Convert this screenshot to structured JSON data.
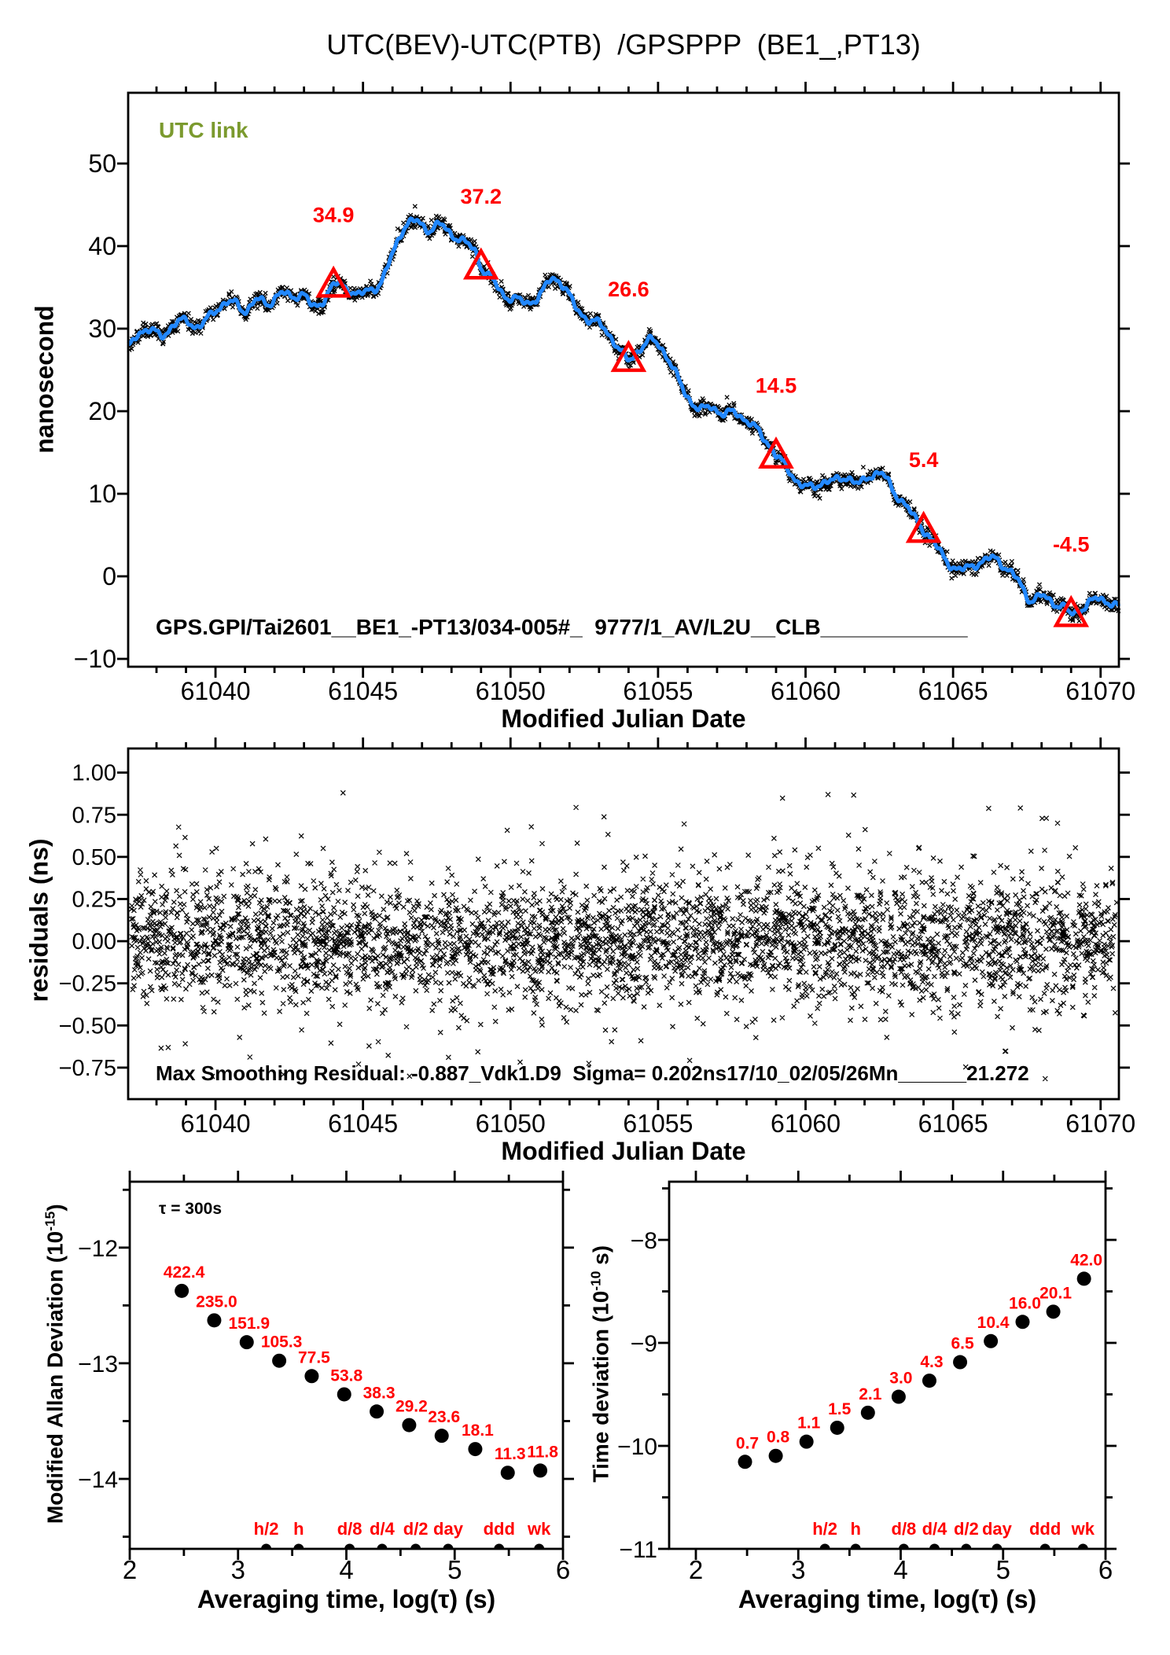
{
  "title": "UTC(BEV)-UTC(PTB)  /GPSPPP  (BE1_,PT13)",
  "colors": {
    "red": "#ff0000",
    "blue": "#2288ff",
    "olive": "#7b9a2e",
    "black": "#000000",
    "background": "#ffffff"
  },
  "chart_data": [
    {
      "type": "line",
      "name": "utc-link-time-series",
      "legend": "UTC link",
      "x_label": "Modified Julian Date",
      "y_label": "nanosecond",
      "annotation": "GPS.GPI/Tai2601__BE1_-PT13/034-005#_  9777/1_AV/L2U__CLB____________",
      "x_ticks": {
        "values": [
          61040,
          61045,
          61050,
          61055,
          61060,
          61065,
          61070
        ],
        "labels": [
          "61040",
          "61045",
          "61050",
          "61055",
          "61060",
          "61065",
          "61070"
        ],
        "minor_step": 1
      },
      "y_ticks": {
        "values": [
          -10,
          0,
          10,
          20,
          30,
          40,
          50
        ],
        "labels": [
          "−10",
          "0",
          "10",
          "20",
          "30",
          "40",
          "50"
        ]
      },
      "x_range": [
        61037.0,
        61070.6
      ],
      "y_range": [
        -11.0,
        58.6
      ],
      "series": [
        {
          "name": "UTC link",
          "x": [
            61037.0,
            61037.4,
            61037.8,
            61038.2,
            61038.6,
            61039.0,
            61039.4,
            61039.8,
            61040.2,
            61040.6,
            61041.0,
            61041.4,
            61041.8,
            61042.2,
            61042.6,
            61043.0,
            61043.3,
            61043.6,
            61044.0,
            61044.4,
            61044.8,
            61045.2,
            61045.6,
            61046.0,
            61046.4,
            61046.8,
            61047.2,
            61047.6,
            61048.0,
            61048.4,
            61048.8,
            61049.0,
            61049.4,
            61049.8,
            61050.2,
            61050.6,
            61051.0,
            61051.4,
            61051.8,
            61052.2,
            61052.6,
            61053.0,
            61053.4,
            61053.8,
            61054.0,
            61054.4,
            61054.8,
            61055.2,
            61055.6,
            61056.0,
            61056.4,
            61056.8,
            61057.2,
            61057.6,
            61058.0,
            61058.4,
            61058.8,
            61059.0,
            61059.4,
            61059.8,
            61060.2,
            61060.6,
            61061.0,
            61061.4,
            61061.8,
            61062.2,
            61062.6,
            61063.0,
            61063.4,
            61063.8,
            61064.0,
            61064.4,
            61064.8,
            61065.2,
            61065.6,
            61066.0,
            61066.4,
            61066.8,
            61067.2,
            61067.6,
            61068.0,
            61068.4,
            61068.8,
            61069.0,
            61069.4,
            61069.8,
            61070.2,
            61070.6
          ],
          "y": [
            27.5,
            29.5,
            29.8,
            29.2,
            30.5,
            31.0,
            30.2,
            31.5,
            32.8,
            33.2,
            32.2,
            33.5,
            33.0,
            34.3,
            33.8,
            34.2,
            32.6,
            33.2,
            35.3,
            35.0,
            34.2,
            34.6,
            35.6,
            39.0,
            42.3,
            43.0,
            42.0,
            42.6,
            41.4,
            40.6,
            39.4,
            37.5,
            35.8,
            34.0,
            33.6,
            33.1,
            34.1,
            36.0,
            35.2,
            32.6,
            31.2,
            30.6,
            29.0,
            27.0,
            26.2,
            27.6,
            28.6,
            27.2,
            24.5,
            21.8,
            20.2,
            20.6,
            19.6,
            19.9,
            18.8,
            17.6,
            15.8,
            14.6,
            13.0,
            11.2,
            10.8,
            11.4,
            11.6,
            12.0,
            11.2,
            12.2,
            12.4,
            10.2,
            8.6,
            6.6,
            5.6,
            3.8,
            1.8,
            0.8,
            1.2,
            1.8,
            2.2,
            1.0,
            -0.5,
            -2.8,
            -2.4,
            -3.2,
            -3.8,
            -4.6,
            -3.8,
            -2.8,
            -3.0,
            -3.6
          ]
        }
      ],
      "events": [
        {
          "x": 61044,
          "y": 35.3,
          "label": "34.9"
        },
        {
          "x": 61049,
          "y": 37.5,
          "label": "37.2"
        },
        {
          "x": 61054,
          "y": 26.3,
          "label": "26.6"
        },
        {
          "x": 61059,
          "y": 14.6,
          "label": "14.5"
        },
        {
          "x": 61064,
          "y": 5.6,
          "label": "5.4"
        },
        {
          "x": 61069,
          "y": -4.6,
          "label": "-4.5"
        }
      ],
      "noise_band": {
        "sigma_ns": 0.42,
        "marker": "x"
      }
    },
    {
      "type": "scatter",
      "name": "residuals",
      "x_label": "Modified Julian Date",
      "y_label": "residuals (ns)",
      "annotation": "Max Smoothing Residual: -0.887_Vdk1.D9  Sigma= 0.202ns17/10_02/05/26Mn______21.272",
      "x_ticks": {
        "values": [
          61040,
          61045,
          61050,
          61055,
          61060,
          61065,
          61070
        ],
        "labels": [
          "61040",
          "61045",
          "61050",
          "61055",
          "61060",
          "61065",
          "61070"
        ],
        "minor_step": 1
      },
      "y_ticks": {
        "values": [
          1.0,
          0.75,
          0.5,
          0.25,
          0.0,
          -0.25,
          -0.5,
          -0.75
        ],
        "labels": [
          "1.00",
          "0.75",
          "0.50",
          "0.25",
          "0.00",
          "−0.25",
          "−0.50",
          "−0.75"
        ]
      },
      "x_range": [
        61037.0,
        61070.6
      ],
      "y_range": [
        -0.94,
        1.14
      ],
      "points": {
        "synthetic": true,
        "n": 3800,
        "sigma_ns": 0.202,
        "y_clip": [
          -0.88,
          0.95
        ],
        "marker": "x"
      }
    },
    {
      "type": "scatter",
      "name": "modified-allan-deviation",
      "x_label": "Averaging time, log(τ) (s)",
      "y_label": {
        "pre": "Modified Allan Deviation (10",
        "sup": "-15",
        "post": ")"
      },
      "tau_note": "τ = 300s",
      "x_ticks": {
        "values": [
          2,
          3,
          4,
          5,
          6
        ],
        "labels": [
          "2",
          "3",
          "4",
          "5",
          "6"
        ],
        "minor_step": 0.5
      },
      "y_ticks": {
        "values": [
          -12,
          -13,
          -14
        ],
        "labels": [
          "−12",
          "−13",
          "−14"
        ],
        "minor_step": 0.5
      },
      "x_range": [
        2.0,
        6.0
      ],
      "y_range": [
        -14.6,
        -11.43
      ],
      "points": {
        "x_log_tau": [
          2.48,
          2.78,
          3.08,
          3.38,
          3.68,
          3.98,
          4.28,
          4.58,
          4.88,
          5.19,
          5.49,
          5.79
        ],
        "y_log": [
          -12.374,
          -12.629,
          -12.818,
          -12.978,
          -13.111,
          -13.269,
          -13.417,
          -13.535,
          -13.627,
          -13.742,
          -13.947,
          -13.928
        ],
        "labels": [
          "422.4",
          "235.0",
          "151.9",
          "105.3",
          "77.5",
          "53.8",
          "38.3",
          "29.2",
          "23.6",
          "18.1",
          "11.3",
          "11.8"
        ]
      },
      "time_marks": [
        {
          "x_log": 3.26,
          "label": "h/2"
        },
        {
          "x_log": 3.56,
          "label": "h"
        },
        {
          "x_log": 4.03,
          "label": "d/8"
        },
        {
          "x_log": 4.33,
          "label": "d/4"
        },
        {
          "x_log": 4.64,
          "label": "d/2"
        },
        {
          "x_log": 4.94,
          "label": "day"
        },
        {
          "x_log": 5.41,
          "label": "ddd"
        },
        {
          "x_log": 5.78,
          "label": "wk"
        }
      ]
    },
    {
      "type": "scatter",
      "name": "time-deviation",
      "x_label": "Averaging time, log(τ) (s)",
      "y_label": {
        "pre": "Time deviation (10",
        "sup": "-10",
        "post": " s)"
      },
      "x_ticks": {
        "values": [
          2,
          3,
          4,
          5,
          6
        ],
        "labels": [
          "2",
          "3",
          "4",
          "5",
          "6"
        ],
        "minor_step": 0.5
      },
      "y_ticks": {
        "values": [
          -8,
          -9,
          -10,
          -11
        ],
        "labels": [
          "−8",
          "−9",
          "−10",
          "−11"
        ],
        "minor_step": 0.5
      },
      "x_range": [
        1.74,
        6.0
      ],
      "y_range": [
        -11.0,
        -7.44
      ],
      "points": {
        "x_log_tau": [
          2.48,
          2.78,
          3.08,
          3.38,
          3.68,
          3.98,
          4.28,
          4.58,
          4.88,
          5.19,
          5.49,
          5.79
        ],
        "y_log": [
          -10.155,
          -10.097,
          -9.959,
          -9.824,
          -9.678,
          -9.523,
          -9.367,
          -9.187,
          -8.983,
          -8.796,
          -8.697,
          -8.377
        ],
        "labels": [
          "0.7",
          "0.8",
          "1.1",
          "1.5",
          "2.1",
          "3.0",
          "4.3",
          "6.5",
          "10.4",
          "16.0",
          "20.1",
          "42.0"
        ]
      },
      "time_marks": [
        {
          "x_log": 3.26,
          "label": "h/2"
        },
        {
          "x_log": 3.56,
          "label": "h"
        },
        {
          "x_log": 4.03,
          "label": "d/8"
        },
        {
          "x_log": 4.33,
          "label": "d/4"
        },
        {
          "x_log": 4.64,
          "label": "d/2"
        },
        {
          "x_log": 4.94,
          "label": "day"
        },
        {
          "x_log": 5.41,
          "label": "ddd"
        },
        {
          "x_log": 5.78,
          "label": "wk"
        }
      ]
    }
  ]
}
